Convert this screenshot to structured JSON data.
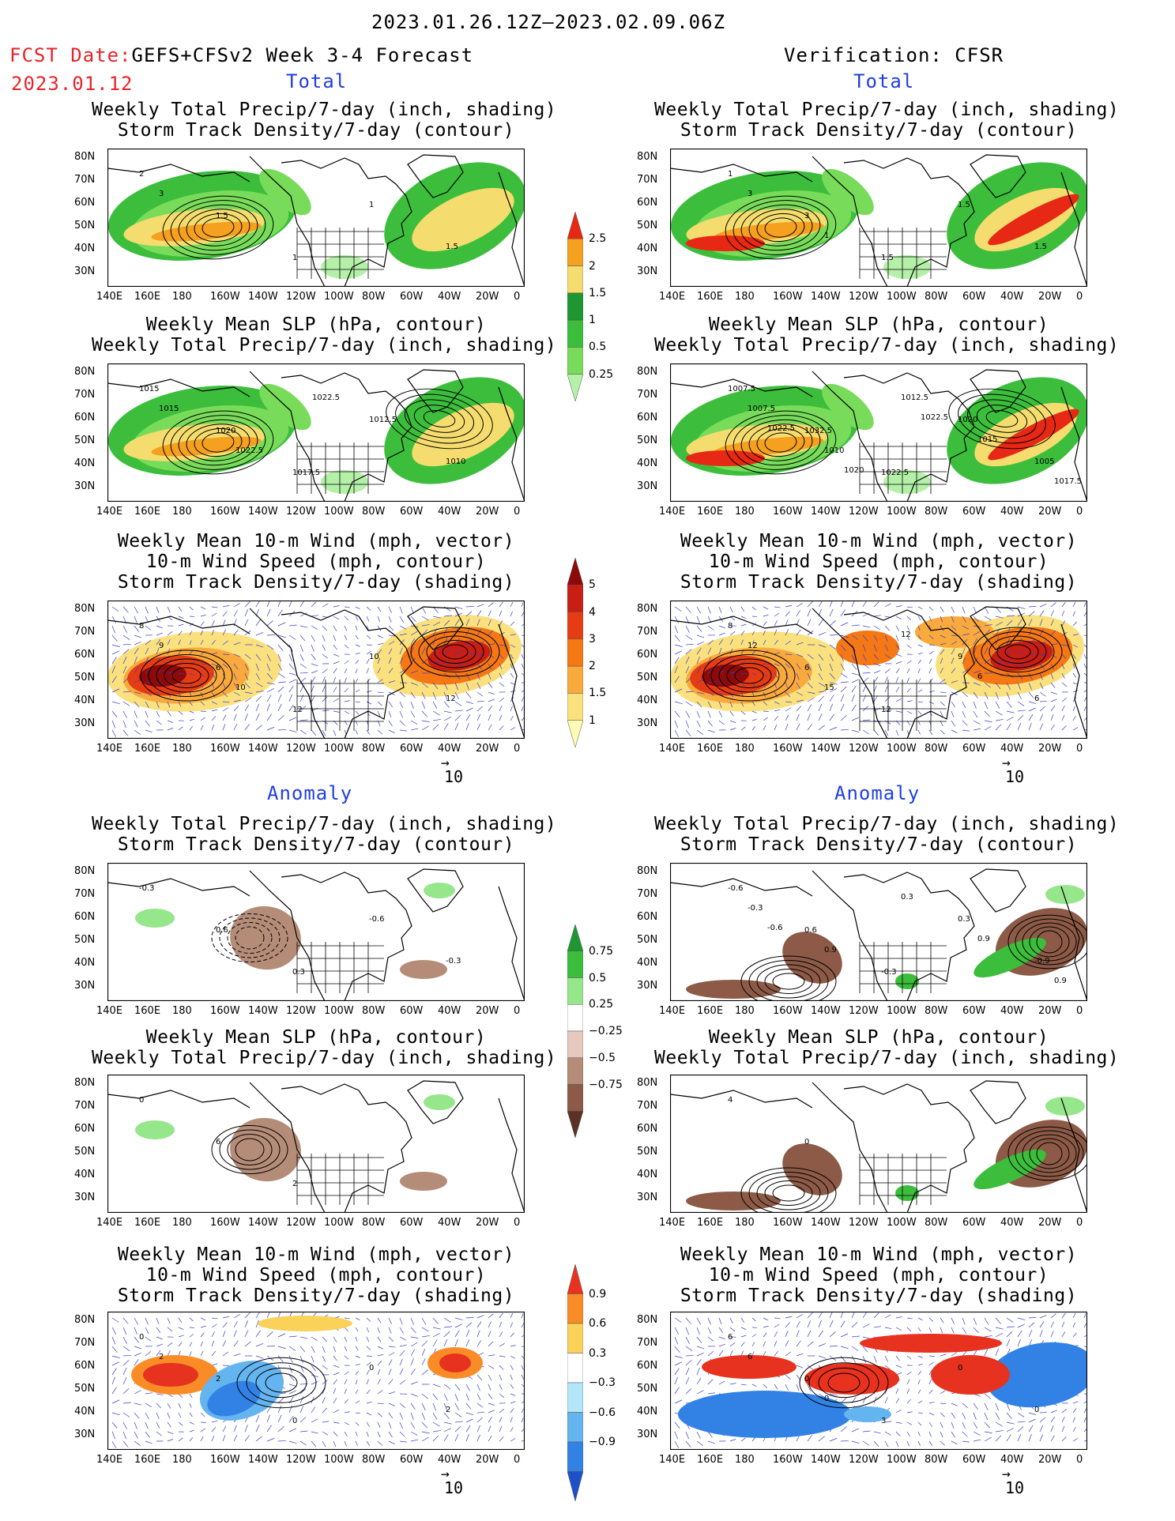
{
  "header": {
    "date_range": "2023.01.26.12Z—2023.02.09.06Z",
    "fcst_label": "FCST Date:",
    "fcst_model": "GEFS+CFSv2 Week 3-4 Forecast",
    "fcst_date": "2023.01.12",
    "verification": "Verification: CFSR"
  },
  "sections": {
    "total": "Total",
    "anomaly": "Anomaly"
  },
  "titles": {
    "precip_storm": [
      "Weekly Total Precip/7-day (inch, shading)",
      "Storm Track Density/7-day (contour)"
    ],
    "slp_precip": [
      "Weekly Mean SLP (hPa, contour)",
      "Weekly Total Precip/7-day (inch, shading)"
    ],
    "wind_storm": [
      "Weekly Mean 10-m Wind (mph, vector)",
      "10-m Wind Speed (mph, contour)",
      "Storm Track Density/7-day (shading)"
    ]
  },
  "axes": {
    "lat_labels": [
      "80N",
      "70N",
      "60N",
      "50N",
      "40N",
      "30N"
    ],
    "lon_labels": [
      "140E",
      "160E",
      "180",
      "160W",
      "140W",
      "120W",
      "100W",
      "80W",
      "60W",
      "40W",
      "20W",
      "0"
    ]
  },
  "vector_ref": "10",
  "colorbars": {
    "precip_total": {
      "labels": [
        "0.25",
        "0.5",
        "1",
        "1.5",
        "2",
        "2.5"
      ],
      "colors": [
        "#b4f0a8",
        "#78dc5a",
        "#3cbe3c",
        "#1e9632",
        "#f5dc6e",
        "#f5a01e",
        "#e62814"
      ]
    },
    "storm_total": {
      "labels": [
        "1",
        "1.5",
        "2",
        "3",
        "4",
        "5"
      ],
      "colors": [
        "#fffab4",
        "#fae17d",
        "#faaa3c",
        "#f57814",
        "#e63c14",
        "#c81e14",
        "#8c0a0a"
      ]
    },
    "precip_anom": {
      "labels": [
        "0.75",
        "0.5",
        "0.25",
        "−0.25",
        "−0.5",
        "−0.75"
      ],
      "colors": [
        "#1e9632",
        "#3cbe3c",
        "#96e68c",
        "#ffffff",
        "#e6c8be",
        "#b48c78",
        "#8c5a46",
        "#5a3224"
      ]
    },
    "storm_anom": {
      "labels": [
        "0.9",
        "0.6",
        "0.3",
        "−0.3",
        "−0.6",
        "−0.9"
      ],
      "colors": [
        "#e6321e",
        "#fa8c28",
        "#fad25a",
        "#ffffff",
        "#b4e6fa",
        "#64b4f0",
        "#3282e6",
        "#1e50c8"
      ]
    }
  },
  "contour_labels": {
    "p1": [
      "2",
      "1.5",
      "1",
      "1",
      "1.5",
      "3"
    ],
    "p2": [
      "1",
      "3",
      "1.5",
      "1.5",
      "1.5",
      "3",
      "1"
    ],
    "p3": [
      "1015",
      "1020",
      "1017.5",
      "1012.5",
      "1010",
      "1015",
      "1022.5",
      "1022.5"
    ],
    "p4": [
      "1007.5",
      "1032.5",
      "1022.5",
      "1020",
      "1005",
      "1007.5",
      "1010",
      "1012.5",
      "1015",
      "1017.5",
      "1022.5",
      "1020",
      "1022.5"
    ],
    "p5": [
      "8",
      "6",
      "12",
      "10",
      "12",
      "9",
      "10"
    ],
    "p6": [
      "8",
      "6",
      "12",
      "9",
      "6",
      "12",
      "15",
      "12",
      "6"
    ],
    "p7": [
      "-0.3",
      "0.6",
      "0.3",
      "-0.6",
      "-0.3"
    ],
    "p8": [
      "-0.6",
      "0.6",
      "-0.3",
      "0.3",
      "-0.9",
      "-0.3",
      "0.9",
      "0.3",
      "0.9",
      "0.9",
      "-0.6"
    ],
    "p9": [
      "0",
      "6",
      "2"
    ],
    "p10": [
      "4",
      "0"
    ],
    "p11": [
      "0",
      "2",
      "0",
      "0",
      "2",
      "2"
    ],
    "p12": [
      "6",
      "0",
      "3",
      "0",
      "0",
      "6",
      "0"
    ]
  }
}
